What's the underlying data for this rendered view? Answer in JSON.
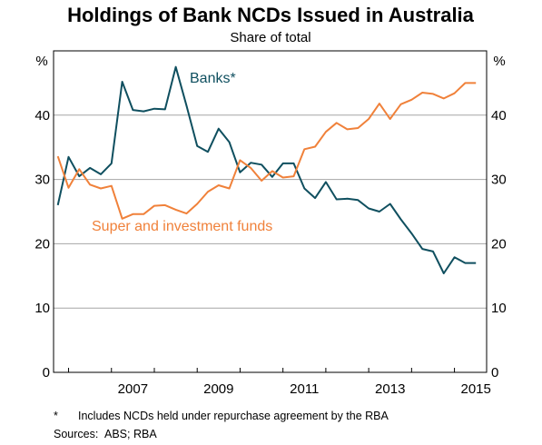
{
  "chart_data": {
    "type": "line",
    "title": "Holdings of Bank NCDs Issued in Australia",
    "subtitle": "Share of total",
    "ylabel_left": "%",
    "ylabel_right": "%",
    "ylim": [
      0,
      50
    ],
    "yticks": [
      0,
      10,
      20,
      30,
      40
    ],
    "xlim": [
      2005.65,
      2015.75
    ],
    "xticks": [
      2007,
      2009,
      2011,
      2013,
      2015
    ],
    "grid": true,
    "series": [
      {
        "name": "Banks*",
        "color": "#0f4f5f",
        "x": [
          2005.75,
          2006.0,
          2006.25,
          2006.5,
          2006.75,
          2007.0,
          2007.25,
          2007.5,
          2007.75,
          2008.0,
          2008.25,
          2008.5,
          2008.75,
          2009.0,
          2009.25,
          2009.5,
          2009.75,
          2010.0,
          2010.25,
          2010.5,
          2010.75,
          2011.0,
          2011.25,
          2011.5,
          2011.75,
          2012.0,
          2012.25,
          2012.5,
          2012.75,
          2013.0,
          2013.25,
          2013.5,
          2013.75,
          2014.0,
          2014.25,
          2014.5,
          2014.75,
          2015.0,
          2015.25,
          2015.5
        ],
        "values": [
          26.0,
          33.5,
          30.5,
          31.8,
          30.8,
          32.5,
          45.2,
          40.8,
          40.6,
          41.0,
          40.9,
          47.5,
          41.5,
          35.2,
          34.3,
          37.9,
          35.8,
          31.1,
          32.6,
          32.3,
          30.4,
          32.5,
          32.5,
          28.6,
          27.1,
          29.6,
          26.9,
          27.0,
          26.8,
          25.5,
          25.0,
          26.2,
          23.8,
          21.6,
          19.2,
          18.8,
          15.4,
          17.9,
          17.0,
          17.0
        ],
        "label_position": "upper-middle"
      },
      {
        "name": "Super and investment funds",
        "color": "#f0813a",
        "x": [
          2005.75,
          2006.0,
          2006.25,
          2006.5,
          2006.75,
          2007.0,
          2007.25,
          2007.5,
          2007.75,
          2008.0,
          2008.25,
          2008.5,
          2008.75,
          2009.0,
          2009.25,
          2009.5,
          2009.75,
          2010.0,
          2010.25,
          2010.5,
          2010.75,
          2011.0,
          2011.25,
          2011.5,
          2011.75,
          2012.0,
          2012.25,
          2012.5,
          2012.75,
          2013.0,
          2013.25,
          2013.5,
          2013.75,
          2014.0,
          2014.25,
          2014.5,
          2014.75,
          2015.0,
          2015.25,
          2015.5
        ],
        "values": [
          33.6,
          28.7,
          31.6,
          29.2,
          28.6,
          29.0,
          23.9,
          24.6,
          24.6,
          25.9,
          26.0,
          25.3,
          24.7,
          26.2,
          28.1,
          29.1,
          28.6,
          33.0,
          31.8,
          29.8,
          31.3,
          30.3,
          30.5,
          34.7,
          35.1,
          37.4,
          38.8,
          37.8,
          38.0,
          39.4,
          41.8,
          39.4,
          41.7,
          42.4,
          43.5,
          43.3,
          42.6,
          43.4,
          45.0,
          45.0
        ],
        "label_position": "lower-left"
      }
    ],
    "footnote_marker": "*",
    "footnote": "Includes NCDs held under repurchase agreement by the RBA",
    "sources_label": "Sources:",
    "sources": "ABS; RBA"
  }
}
